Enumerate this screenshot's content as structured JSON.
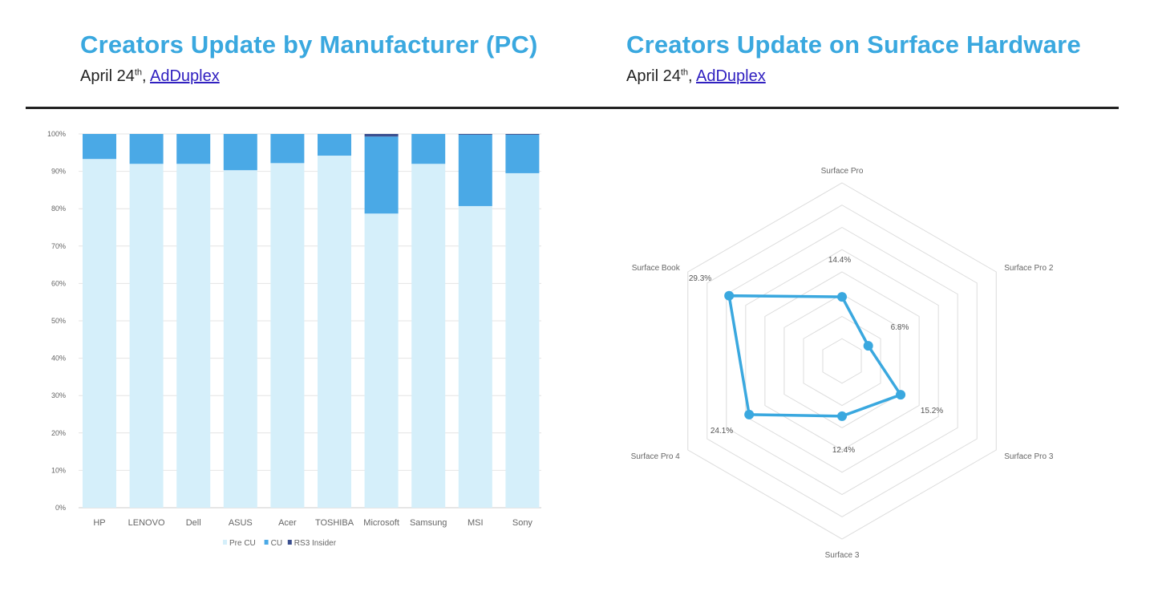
{
  "left": {
    "title": "Creators Update by Manufacturer (PC)",
    "date": "April 24",
    "date_suffix": "th",
    "comma": ",",
    "source": "AdDuplex"
  },
  "right": {
    "title": "Creators Update on Surface Hardware",
    "date": "April 24",
    "date_suffix": "th",
    "comma": ",",
    "source": "AdDuplex"
  },
  "chart_data": [
    {
      "type": "bar",
      "stacked": true,
      "categories": [
        "HP",
        "LENOVO",
        "Dell",
        "ASUS",
        "Acer",
        "TOSHIBA",
        "Microsoft",
        "Samsung",
        "MSI",
        "Sony"
      ],
      "series": [
        {
          "name": "Pre CU",
          "color": "#d5effa",
          "values": [
            93.3,
            92.0,
            92.0,
            90.3,
            92.2,
            94.2,
            78.7,
            92.0,
            80.7,
            89.5
          ]
        },
        {
          "name": "CU",
          "color": "#4aa9e6",
          "values": [
            6.7,
            8.0,
            8.0,
            9.7,
            7.8,
            5.8,
            20.6,
            8.0,
            19.1,
            10.3
          ]
        },
        {
          "name": "RS3 Insider",
          "color": "#3a4f8f",
          "values": [
            0,
            0,
            0,
            0,
            0,
            0,
            0.7,
            0,
            0.2,
            0.2
          ]
        }
      ],
      "ylim": [
        0,
        100
      ],
      "yticks": [
        "0%",
        "10%",
        "20%",
        "30%",
        "40%",
        "50%",
        "60%",
        "70%",
        "80%",
        "90%",
        "100%"
      ],
      "grid": true,
      "legend": "bottom"
    },
    {
      "type": "radar",
      "categories": [
        "Surface Pro",
        "Surface Pro 2",
        "Surface Pro 3",
        "Surface 3",
        "Surface Pro 4",
        "Surface Book"
      ],
      "values": [
        14.4,
        6.8,
        15.2,
        12.4,
        24.1,
        29.3
      ],
      "labels": [
        "14.4%",
        "6.8%",
        "15.2%",
        "12.4%",
        "24.1%",
        "29.3%"
      ],
      "rlim": [
        0,
        40
      ],
      "rings": 8,
      "color": "#3aa8df"
    }
  ]
}
